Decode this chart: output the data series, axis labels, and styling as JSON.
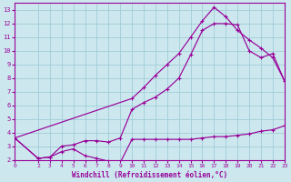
{
  "xlabel": "Windchill (Refroidissement éolien,°C)",
  "bg_color": "#cce8ee",
  "grid_color": "#a0ccd8",
  "line_color": "#990099",
  "xlim": [
    0,
    23
  ],
  "ylim": [
    2,
    13.5
  ],
  "xticks": [
    0,
    2,
    3,
    4,
    5,
    6,
    7,
    8,
    9,
    10,
    11,
    12,
    13,
    14,
    15,
    16,
    17,
    18,
    19,
    20,
    21,
    22,
    23
  ],
  "yticks": [
    2,
    3,
    4,
    5,
    6,
    7,
    8,
    9,
    10,
    11,
    12,
    13
  ],
  "line1_x": [
    0,
    2,
    3,
    4,
    5,
    6,
    7,
    8,
    9,
    10,
    11,
    12,
    13,
    14,
    15,
    16,
    17,
    18,
    19,
    20,
    21,
    22,
    23
  ],
  "line1_y": [
    3.6,
    2.1,
    2.2,
    2.6,
    2.8,
    2.3,
    2.1,
    1.9,
    1.8,
    3.5,
    3.5,
    3.5,
    3.5,
    3.5,
    3.5,
    3.6,
    3.7,
    3.7,
    3.8,
    3.9,
    4.1,
    4.2,
    4.5
  ],
  "line2_x": [
    0,
    2,
    3,
    4,
    5,
    6,
    7,
    8,
    9,
    10,
    11,
    12,
    13,
    14,
    15,
    16,
    17,
    18,
    19,
    20,
    21,
    22,
    23
  ],
  "line2_y": [
    3.6,
    2.1,
    2.2,
    3.0,
    3.1,
    3.4,
    3.4,
    3.3,
    3.6,
    5.7,
    6.2,
    6.6,
    7.2,
    8.0,
    9.7,
    11.5,
    12.0,
    12.0,
    11.9,
    10.0,
    9.5,
    9.8,
    7.8
  ],
  "line3_x": [
    0,
    10,
    11,
    12,
    13,
    14,
    15,
    16,
    17,
    18,
    19,
    20,
    21,
    22,
    23
  ],
  "line3_y": [
    3.6,
    6.5,
    7.3,
    8.2,
    9.0,
    9.8,
    11.0,
    12.2,
    13.2,
    12.5,
    11.5,
    10.8,
    10.2,
    9.5,
    7.8
  ]
}
